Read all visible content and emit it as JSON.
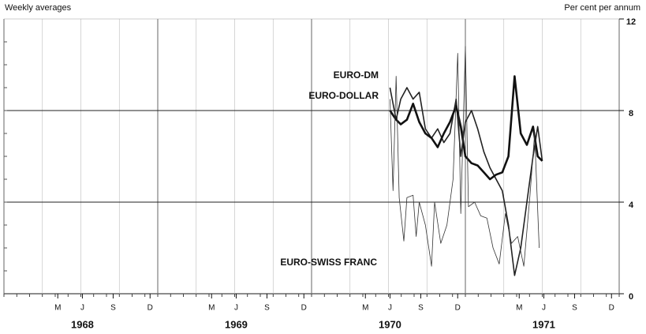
{
  "chart_data": {
    "type": "line",
    "subtitle": "Weekly averages",
    "ylabel": "Per cent per annum",
    "xlim": [
      1968,
      1972
    ],
    "ylim": [
      0,
      12
    ],
    "yticks": [
      0,
      4,
      8,
      12
    ],
    "grid": true,
    "xticks": [
      {
        "value": 1968.35,
        "label": "M"
      },
      {
        "value": 1968.51,
        "label": "J"
      },
      {
        "value": 1968.71,
        "label": "S"
      },
      {
        "value": 1968.95,
        "label": "D"
      },
      {
        "value": 1969.35,
        "label": "M"
      },
      {
        "value": 1969.51,
        "label": "J"
      },
      {
        "value": 1969.71,
        "label": "S"
      },
      {
        "value": 1969.95,
        "label": "D"
      },
      {
        "value": 1970.35,
        "label": "M"
      },
      {
        "value": 1970.51,
        "label": "J"
      },
      {
        "value": 1970.71,
        "label": "S"
      },
      {
        "value": 1970.95,
        "label": "D"
      },
      {
        "value": 1971.35,
        "label": "M"
      },
      {
        "value": 1971.51,
        "label": "J"
      },
      {
        "value": 1971.71,
        "label": "S"
      },
      {
        "value": 1971.95,
        "label": "D"
      }
    ],
    "year_ticks": [
      {
        "value": 1968.51,
        "label": "1968"
      },
      {
        "value": 1969.51,
        "label": "1969"
      },
      {
        "value": 1970.51,
        "label": "1970"
      },
      {
        "value": 1971.51,
        "label": "1971"
      }
    ],
    "series": [
      {
        "name": "EURO-DM",
        "color": "#222222",
        "line_width": 1.6,
        "x": [
          1970.51,
          1970.55,
          1970.58,
          1970.62,
          1970.66,
          1970.7,
          1970.74,
          1970.78,
          1970.82,
          1970.86,
          1970.9,
          1970.94,
          1970.97,
          1971.0,
          1971.04,
          1971.08,
          1971.12,
          1971.16,
          1971.2,
          1971.24,
          1971.28,
          1971.32,
          1971.36,
          1971.4,
          1971.44,
          1971.47,
          1971.5
        ],
        "values": [
          9.0,
          7.6,
          8.5,
          9.0,
          8.5,
          8.8,
          7.2,
          6.8,
          7.2,
          6.6,
          7.0,
          8.5,
          6.0,
          7.5,
          8.0,
          7.2,
          6.2,
          5.5,
          5.0,
          4.5,
          3.0,
          0.8,
          2.0,
          4.0,
          6.0,
          7.3,
          5.8
        ]
      },
      {
        "name": "EURO-DOLLAR",
        "color": "#111111",
        "line_width": 2.6,
        "x": [
          1970.51,
          1970.55,
          1970.58,
          1970.62,
          1970.66,
          1970.7,
          1970.74,
          1970.78,
          1970.82,
          1970.86,
          1970.9,
          1970.94,
          1970.97,
          1971.0,
          1971.04,
          1971.08,
          1971.12,
          1971.16,
          1971.2,
          1971.24,
          1971.28,
          1971.32,
          1971.36,
          1971.4,
          1971.44,
          1971.47,
          1971.5
        ],
        "values": [
          8.0,
          7.6,
          7.4,
          7.6,
          8.3,
          7.5,
          7.0,
          6.8,
          6.4,
          7.0,
          7.5,
          8.2,
          7.3,
          6.0,
          5.7,
          5.6,
          5.3,
          5.0,
          5.2,
          5.3,
          6.0,
          9.5,
          7.0,
          6.5,
          7.3,
          6.0,
          5.8
        ]
      },
      {
        "name": "EURO-SWISS FRANC",
        "color": "#333333",
        "line_width": 0.8,
        "x": [
          1970.51,
          1970.53,
          1970.55,
          1970.57,
          1970.6,
          1970.62,
          1970.66,
          1970.68,
          1970.7,
          1970.74,
          1970.78,
          1970.8,
          1970.84,
          1970.88,
          1970.92,
          1970.95,
          1970.97,
          1971.0,
          1971.02,
          1971.06,
          1971.1,
          1971.14,
          1971.18,
          1971.22,
          1971.26,
          1971.3,
          1971.34,
          1971.38,
          1971.42,
          1971.45,
          1971.48
        ],
        "values": [
          8.5,
          4.5,
          9.5,
          4.2,
          2.3,
          4.2,
          4.3,
          2.5,
          4.0,
          3.0,
          1.2,
          4.0,
          2.2,
          3.0,
          5.0,
          10.5,
          3.5,
          10.8,
          3.8,
          4.0,
          3.4,
          3.3,
          2.0,
          1.3,
          3.5,
          2.2,
          2.5,
          1.2,
          4.3,
          7.0,
          2.0
        ]
      }
    ]
  }
}
